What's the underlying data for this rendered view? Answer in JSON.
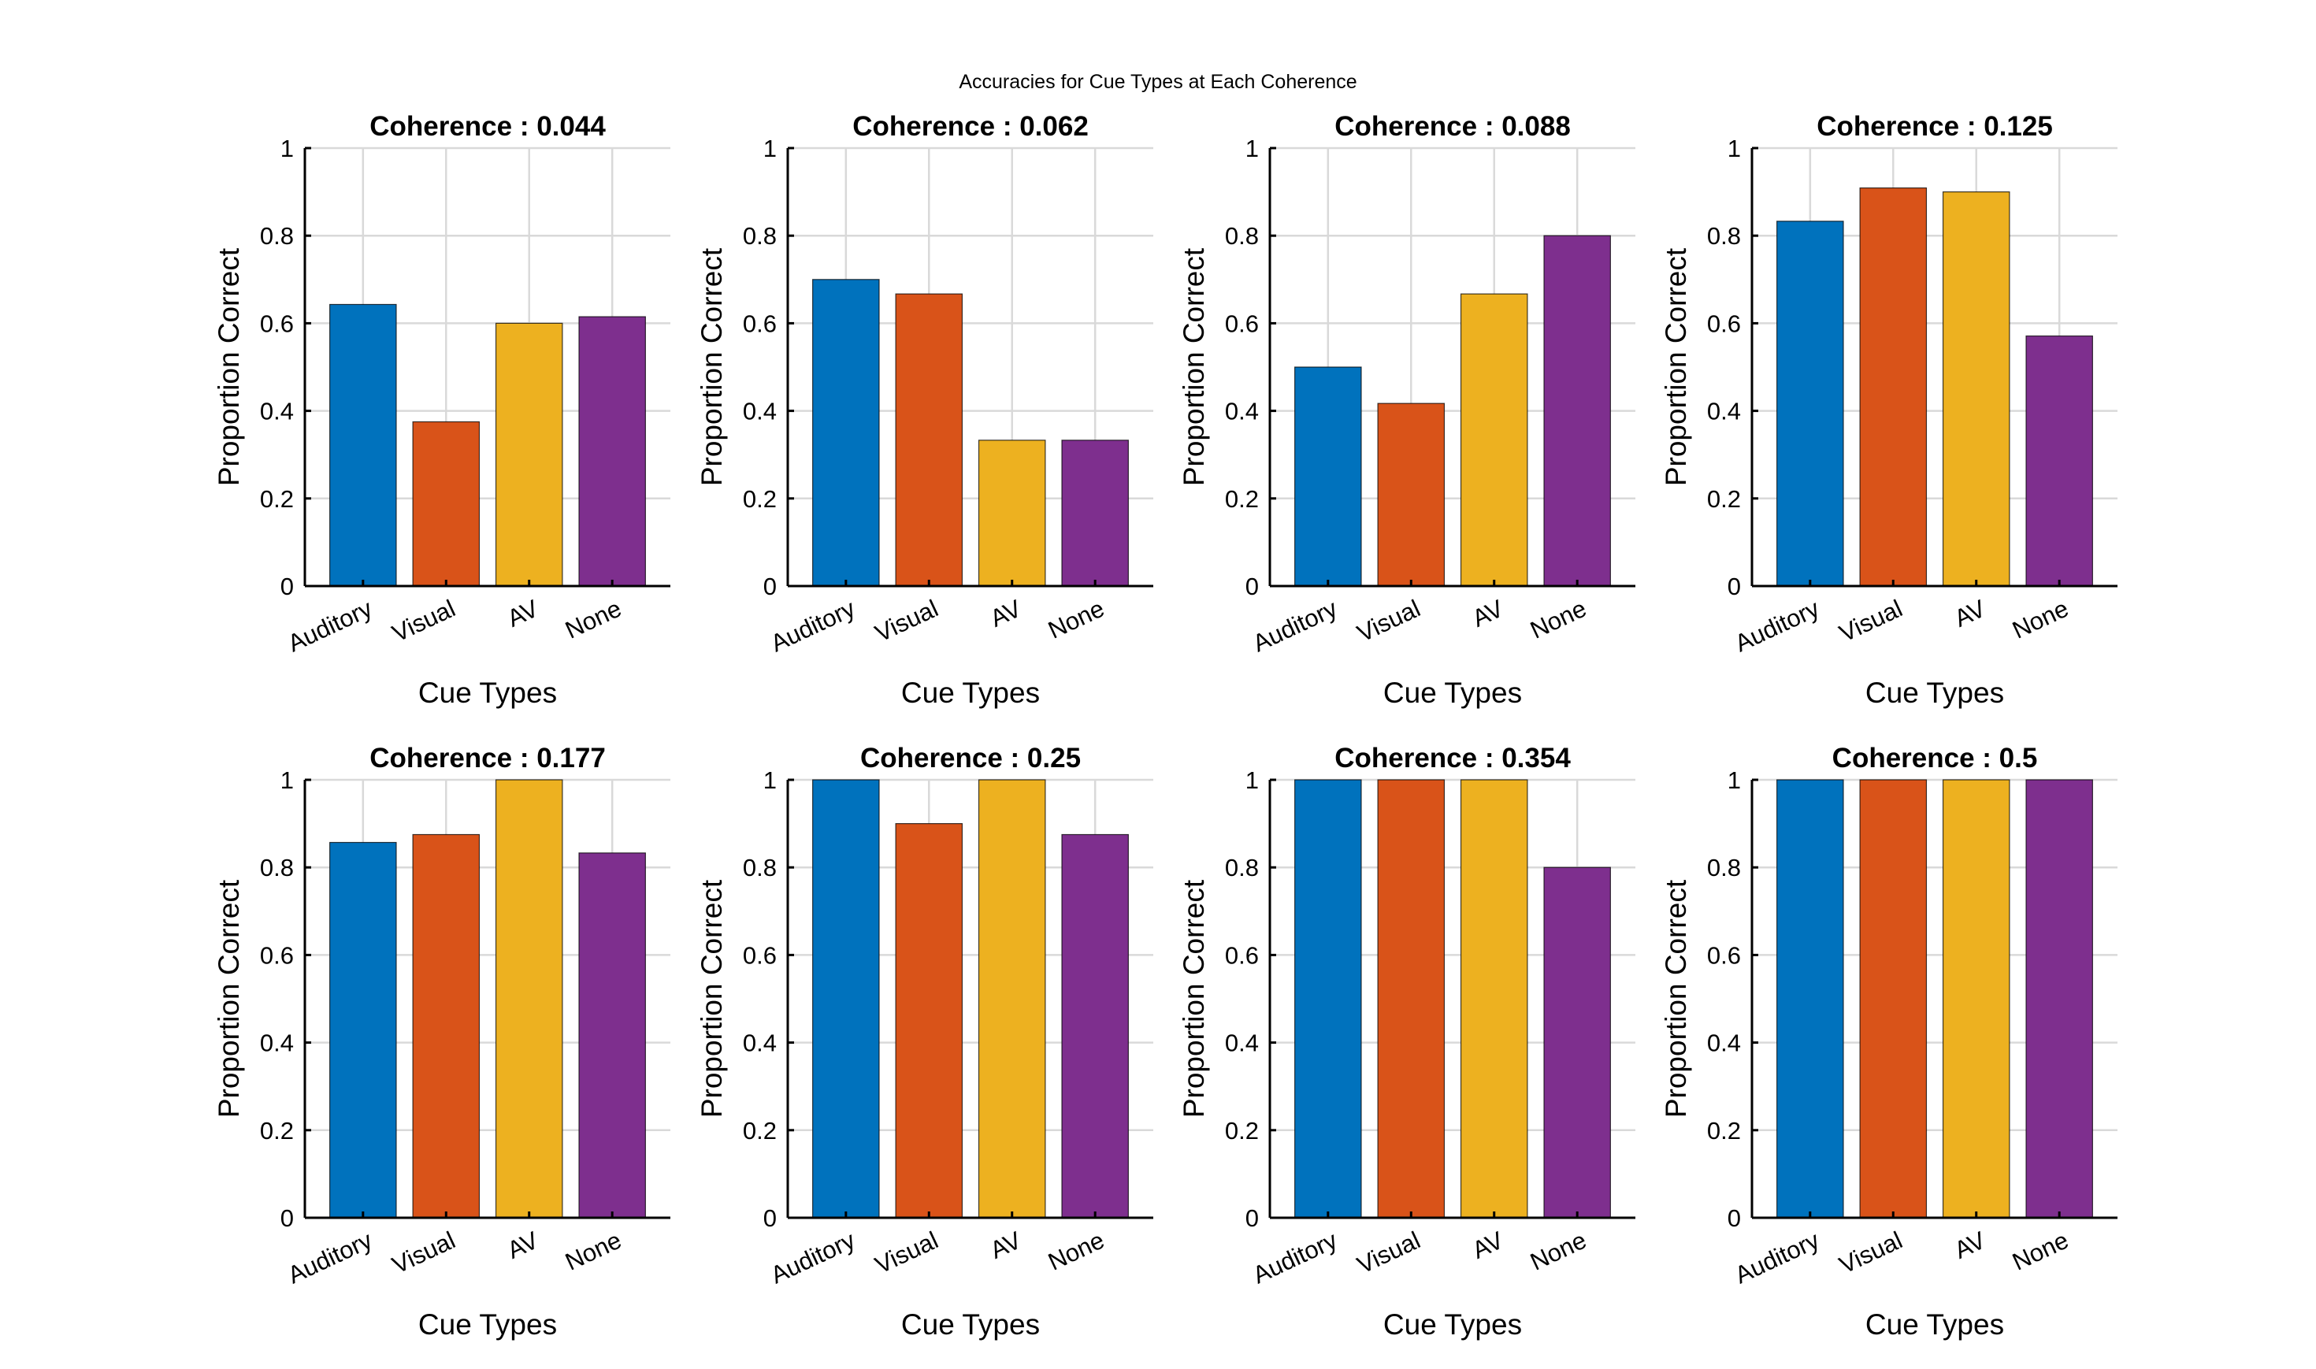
{
  "figure": {
    "suptitle": "Accuracies for Cue Types at Each Coherence"
  },
  "chart_data": [
    {
      "type": "bar",
      "title": "Coherence : 0.044",
      "xlabel": "Cue Types",
      "ylabel": "Proportion Correct",
      "categories": [
        "Auditory",
        "Visual",
        "AV",
        "None"
      ],
      "values": [
        0.643,
        0.375,
        0.6,
        0.615
      ],
      "ylim": [
        0,
        1
      ],
      "yticks": [
        "0",
        "0.2",
        "0.4",
        "0.6",
        "0.8",
        "1"
      ],
      "grid": true
    },
    {
      "type": "bar",
      "title": "Coherence : 0.062",
      "xlabel": "Cue Types",
      "ylabel": "Proportion Correct",
      "categories": [
        "Auditory",
        "Visual",
        "AV",
        "None"
      ],
      "values": [
        0.7,
        0.667,
        0.333,
        0.333
      ],
      "ylim": [
        0,
        1
      ],
      "yticks": [
        "0",
        "0.2",
        "0.4",
        "0.6",
        "0.8",
        "1"
      ],
      "grid": true
    },
    {
      "type": "bar",
      "title": "Coherence : 0.088",
      "xlabel": "Cue Types",
      "ylabel": "Proportion Correct",
      "categories": [
        "Auditory",
        "Visual",
        "AV",
        "None"
      ],
      "values": [
        0.5,
        0.417,
        0.667,
        0.8
      ],
      "ylim": [
        0,
        1
      ],
      "yticks": [
        "0",
        "0.2",
        "0.4",
        "0.6",
        "0.8",
        "1"
      ],
      "grid": true
    },
    {
      "type": "bar",
      "title": "Coherence : 0.125",
      "xlabel": "Cue Types",
      "ylabel": "Proportion Correct",
      "categories": [
        "Auditory",
        "Visual",
        "AV",
        "None"
      ],
      "values": [
        0.833,
        0.909,
        0.9,
        0.571
      ],
      "ylim": [
        0,
        1
      ],
      "yticks": [
        "0",
        "0.2",
        "0.4",
        "0.6",
        "0.8",
        "1"
      ],
      "grid": true
    },
    {
      "type": "bar",
      "title": "Coherence : 0.177",
      "xlabel": "Cue Types",
      "ylabel": "Proportion Correct",
      "categories": [
        "Auditory",
        "Visual",
        "AV",
        "None"
      ],
      "values": [
        0.857,
        0.875,
        1.0,
        0.833
      ],
      "ylim": [
        0,
        1
      ],
      "yticks": [
        "0",
        "0.2",
        "0.4",
        "0.6",
        "0.8",
        "1"
      ],
      "grid": true
    },
    {
      "type": "bar",
      "title": "Coherence : 0.25",
      "xlabel": "Cue Types",
      "ylabel": "Proportion Correct",
      "categories": [
        "Auditory",
        "Visual",
        "AV",
        "None"
      ],
      "values": [
        1.0,
        0.9,
        1.0,
        0.875
      ],
      "ylim": [
        0,
        1
      ],
      "yticks": [
        "0",
        "0.2",
        "0.4",
        "0.6",
        "0.8",
        "1"
      ],
      "grid": true
    },
    {
      "type": "bar",
      "title": "Coherence : 0.354",
      "xlabel": "Cue Types",
      "ylabel": "Proportion Correct",
      "categories": [
        "Auditory",
        "Visual",
        "AV",
        "None"
      ],
      "values": [
        1.0,
        1.0,
        1.0,
        0.8
      ],
      "ylim": [
        0,
        1
      ],
      "yticks": [
        "0",
        "0.2",
        "0.4",
        "0.6",
        "0.8",
        "1"
      ],
      "grid": true
    },
    {
      "type": "bar",
      "title": "Coherence : 0.5",
      "xlabel": "Cue Types",
      "ylabel": "Proportion Correct",
      "categories": [
        "Auditory",
        "Visual",
        "AV",
        "None"
      ],
      "values": [
        1.0,
        1.0,
        1.0,
        1.0
      ],
      "ylim": [
        0,
        1
      ],
      "yticks": [
        "0",
        "0.2",
        "0.4",
        "0.6",
        "0.8",
        "1"
      ],
      "grid": true
    }
  ],
  "colors": {
    "bars": [
      "#0072BD",
      "#D95319",
      "#EDB120",
      "#7E2F8E"
    ],
    "grid": "#d9d9d9",
    "axes": "#000000"
  }
}
